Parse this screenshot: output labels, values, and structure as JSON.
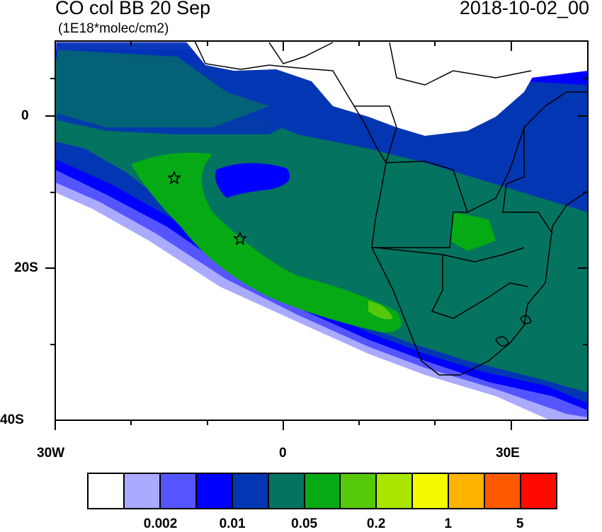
{
  "title": "CO col BB 20 Sep",
  "units": "(1E18*molec/cm2)",
  "date": "2018-10-02_00",
  "x_labels": [
    "30W",
    "0",
    "30E"
  ],
  "y_labels": [
    "0",
    "20S",
    "40S"
  ],
  "colorbar": {
    "colors": [
      "#ffffff",
      "#aaaaff",
      "#5555ff",
      "#0000ff",
      "#0336b3",
      "#04735f",
      "#05aa14",
      "#55c80a",
      "#a8e600",
      "#f5fa00",
      "#ffb400",
      "#ff5a00",
      "#ff0a00"
    ],
    "labels": [
      "0.002",
      "0.01",
      "0.05",
      "0.2",
      "1",
      "5"
    ]
  },
  "markers": [
    {
      "name": "star",
      "lon": -14,
      "lat": -8
    },
    {
      "name": "star",
      "lon": -5.5,
      "lat": -16
    }
  ]
}
